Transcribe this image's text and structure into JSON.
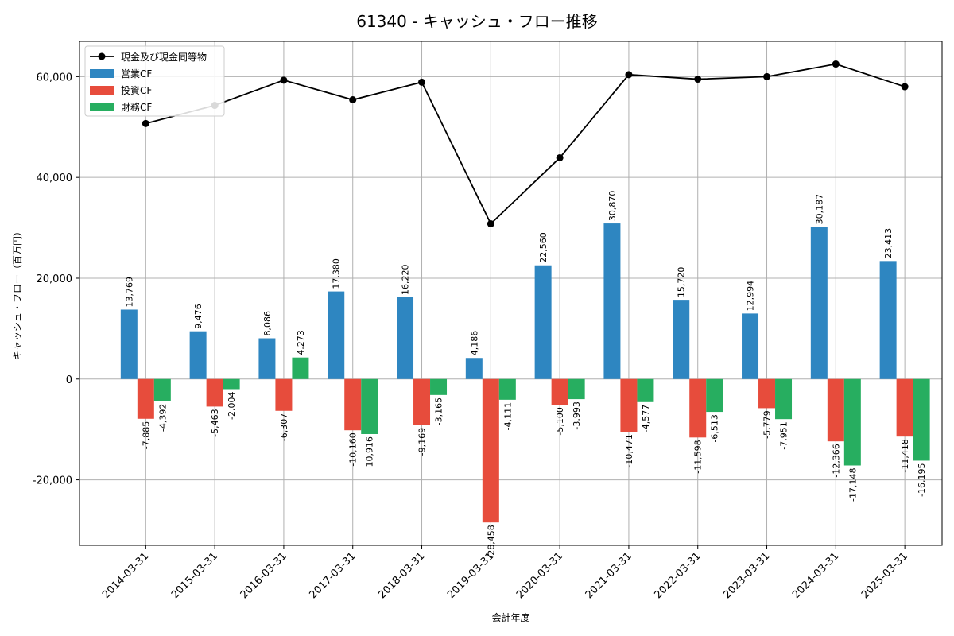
{
  "chart_data": {
    "type": "bar",
    "title": "61340 - キャッシュ・フロー推移",
    "xlabel": "会計年度",
    "ylabel": "キャッシュ・フロー（百万円）",
    "ylim": [
      -33000,
      67000
    ],
    "yticks": [
      -20000,
      0,
      20000,
      40000,
      60000
    ],
    "ytick_labels": [
      "-20,000",
      "0",
      "20,000",
      "40,000",
      "60,000"
    ],
    "grid": true,
    "legend_position": "top-left",
    "categories": [
      "2014-03-31",
      "2015-03-31",
      "2016-03-31",
      "2017-03-31",
      "2018-03-31",
      "2019-03-31",
      "2020-03-31",
      "2021-03-31",
      "2022-03-31",
      "2023-03-31",
      "2024-03-31",
      "2025-03-31"
    ],
    "series": [
      {
        "name": "営業CF",
        "kind": "bar",
        "color": "#2e86c1",
        "values": [
          13769,
          9476,
          8086,
          17380,
          16220,
          4186,
          22560,
          30870,
          15720,
          12994,
          30187,
          23413
        ],
        "labels": [
          "13,769",
          "9,476",
          "8,086",
          "17,380",
          "16,220",
          "4,186",
          "22,560",
          "30,870",
          "15,720",
          "12,994",
          "30,187",
          "23,413"
        ]
      },
      {
        "name": "投資CF",
        "kind": "bar",
        "color": "#e74c3c",
        "values": [
          -7885,
          -5463,
          -6307,
          -10160,
          -9169,
          -28458,
          -5100,
          -10471,
          -11598,
          -5779,
          -12366,
          -11418
        ],
        "labels": [
          "-7,885",
          "-5,463",
          "-6,307",
          "-10,160",
          "-9,169",
          "-28,458",
          "-5,100",
          "-10,471",
          "-11,598",
          "-5,779",
          "-12,366",
          "-11,418"
        ]
      },
      {
        "name": "財務CF",
        "kind": "bar",
        "color": "#27ae60",
        "values": [
          -4392,
          -2004,
          4273,
          -10916,
          -3165,
          -4111,
          -3993,
          -4577,
          -6513,
          -7951,
          -17148,
          -16195
        ],
        "labels": [
          "-4,392",
          "-2,004",
          "4,273",
          "-10,916",
          "-3,165",
          "-4,111",
          "-3,993",
          "-4,577",
          "-6,513",
          "-7,951",
          "-17,148",
          "-16,195"
        ]
      },
      {
        "name": "現金及び現金同等物",
        "kind": "line",
        "color": "#000000",
        "values": [
          50700,
          54300,
          59300,
          55400,
          58900,
          30800,
          43900,
          60400,
          59500,
          60000,
          62500,
          58000
        ]
      }
    ]
  }
}
